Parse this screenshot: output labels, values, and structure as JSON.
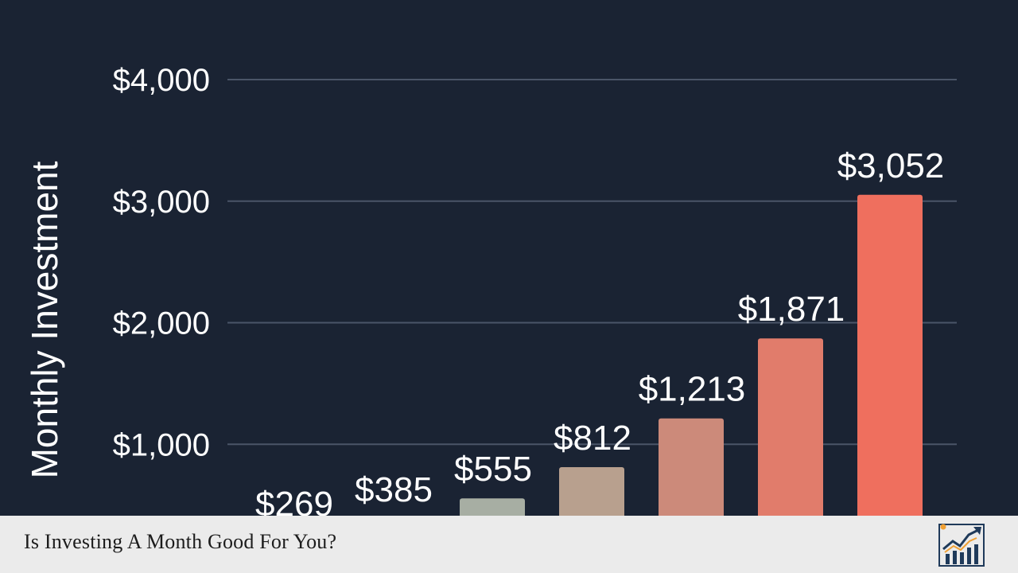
{
  "chart_data": {
    "type": "bar",
    "ylabel": "Monthly Investment",
    "ylim": [
      0,
      4000
    ],
    "yticks": [
      1000,
      2000,
      3000,
      4000
    ],
    "ytick_labels": [
      "$1,000",
      "$2,000",
      "$3,000",
      "$4,000"
    ],
    "values": [
      269,
      385,
      555,
      812,
      1213,
      1871,
      3052
    ],
    "data_labels": [
      "$269",
      "$385",
      "$555",
      "$812",
      "$1,213",
      "$1,871",
      "$3,052"
    ],
    "bar_colors": [
      "#7fa3a0",
      "#8fa39c",
      "#a7aea3",
      "#b8a08e",
      "#cc8a7a",
      "#e17c6b",
      "#ef6f5e"
    ],
    "grid": true
  },
  "footer": {
    "title": "Is Investing A Month Good For You?",
    "logo_icon": "chart-growth-logo-icon"
  },
  "colors": {
    "background": "#1a2333",
    "gridline": "#4a5568",
    "footer_bg": "#ebebeb",
    "footer_text": "#1c1c1c",
    "logo_dark": "#1f3a5a",
    "logo_accent": "#f0a033"
  }
}
